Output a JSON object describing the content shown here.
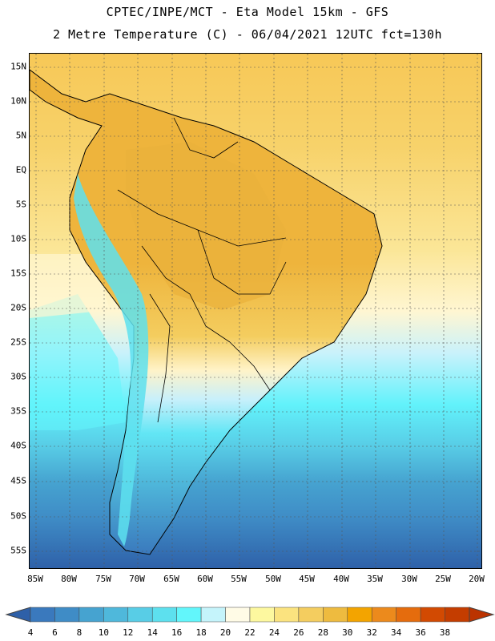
{
  "title_line1": "CPTEC/INPE/MCT -  Eta Model 15km - GFS",
  "title_line2": "2 Metre Temperature (C) - 06/04/2021 12UTC fct=130h",
  "lat_labels": [
    "15N",
    "10N",
    "5N",
    "EQ",
    "5S",
    "10S",
    "15S",
    "20S",
    "25S",
    "30S",
    "35S",
    "40S",
    "45S",
    "50S",
    "55S"
  ],
  "lon_labels": [
    "85W",
    "80W",
    "75W",
    "70W",
    "65W",
    "60W",
    "55W",
    "50W",
    "45W",
    "40W",
    "35W",
    "30W",
    "25W",
    "20W"
  ],
  "colorbar": {
    "labels": [
      "4",
      "6",
      "8",
      "10",
      "12",
      "14",
      "16",
      "18",
      "20",
      "22",
      "24",
      "26",
      "28",
      "30",
      "32",
      "34",
      "36",
      "38"
    ],
    "colors": [
      "#3a79bd",
      "#3f8cc6",
      "#46a3d0",
      "#4fb8db",
      "#58cde6",
      "#5de0ee",
      "#62f6fb",
      "#c5f4fb",
      "#fffbe6",
      "#fdf89f",
      "#fbe37f",
      "#f4cd5f",
      "#eebb3f",
      "#f3a400",
      "#ec8a1c",
      "#e56c0d",
      "#d24a02",
      "#c43d00"
    ],
    "under_color": "#2e60a8",
    "over_color": "#bb3300"
  }
}
